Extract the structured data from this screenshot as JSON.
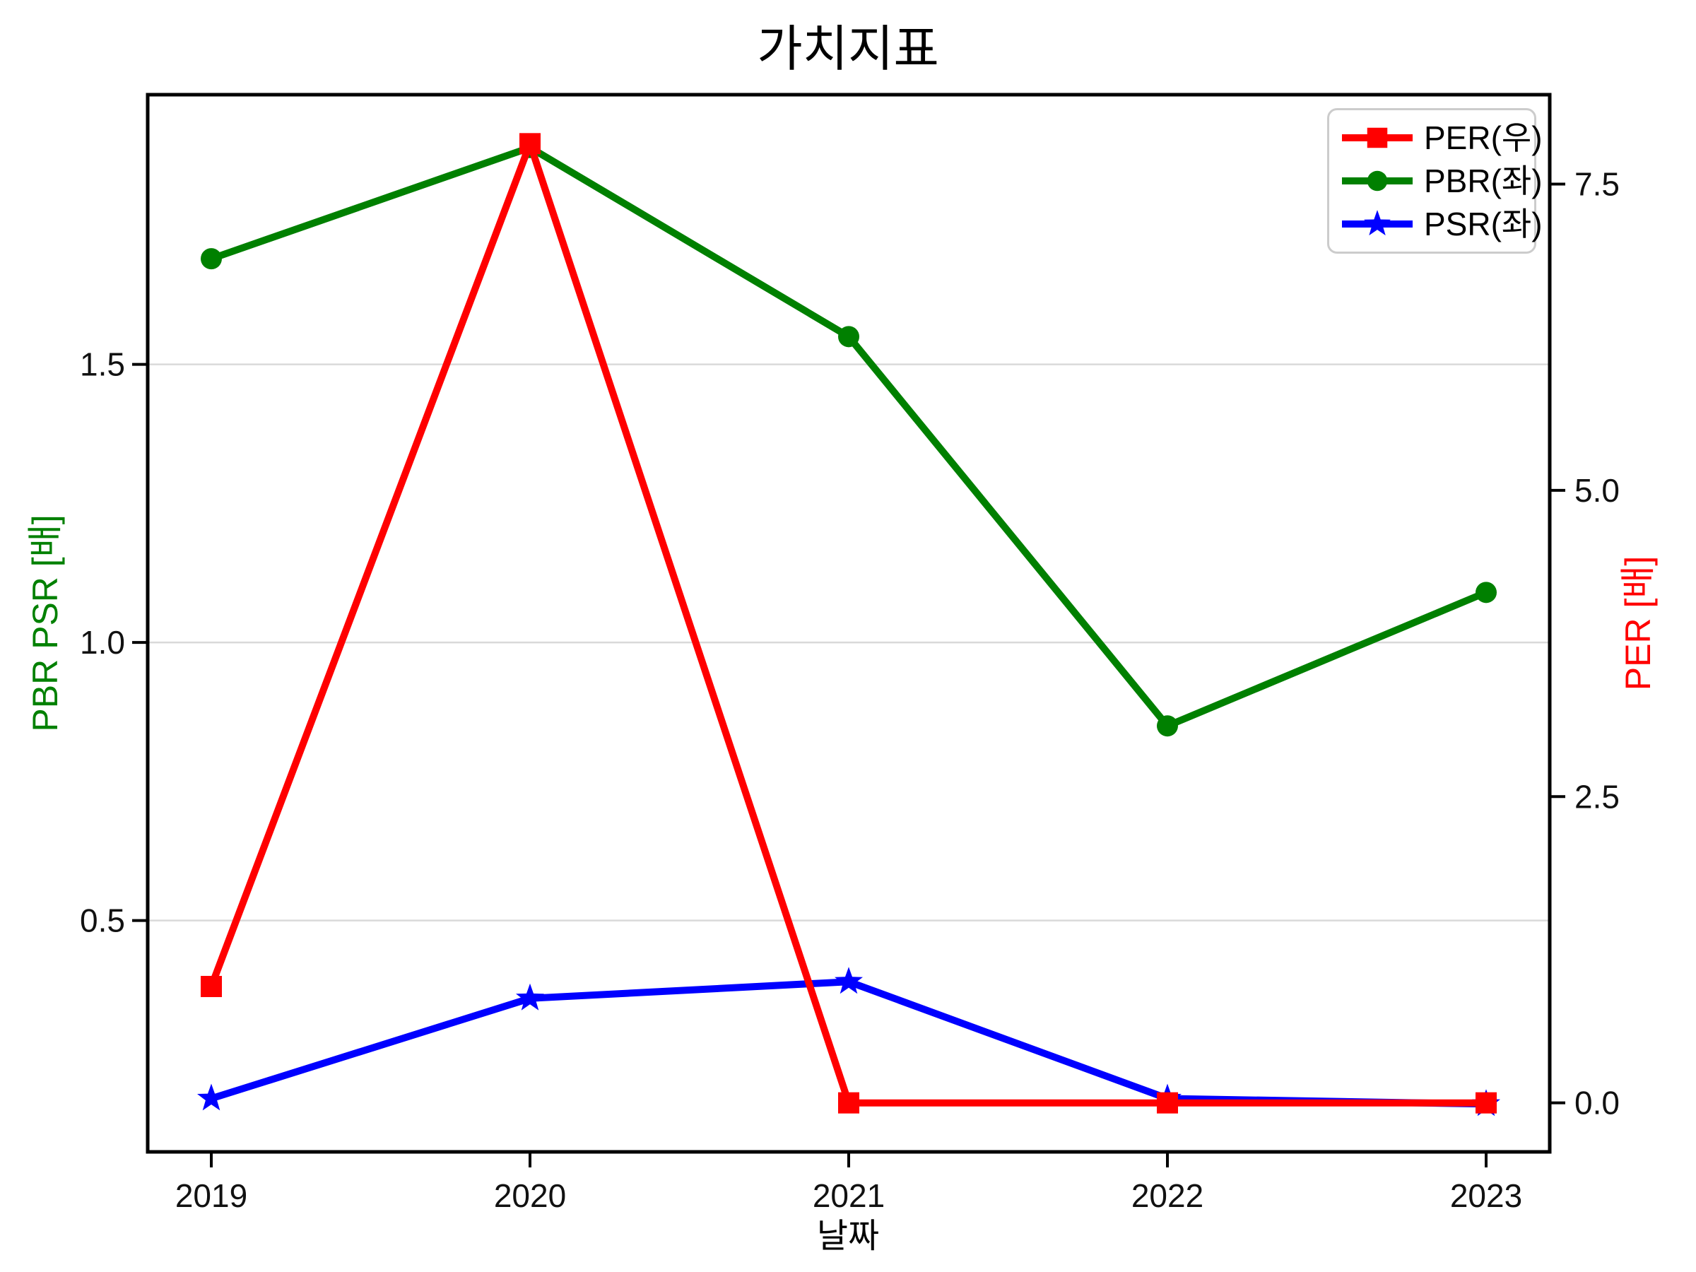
{
  "title": "가치지표",
  "axes": {
    "xlabel": "날짜",
    "ylabel_left": "PBR PSR [배]",
    "ylabel_right": "PER [배]"
  },
  "legend": [
    {
      "label": "PER(우)",
      "marker": "square",
      "color": "#ff0000"
    },
    {
      "label": "PBR(좌)",
      "marker": "circle",
      "color": "#008000"
    },
    {
      "label": "PSR(좌)",
      "marker": "star",
      "color": "#0000ff"
    }
  ],
  "colors": {
    "background": "#ffffff",
    "axis": "#000000",
    "grid": "#d9d9d9",
    "tick_text": "#111111",
    "title_text": "#000000",
    "left_label": "#008000",
    "right_label": "#ff0000",
    "legend_border": "#cccccc",
    "per": "#ff0000",
    "pbr": "#008000",
    "psr": "#0000ff"
  },
  "chart_data": {
    "type": "line",
    "title": "가치지표",
    "xlabel": "날짜",
    "ylabel_left": "PBR PSR [배]",
    "ylabel_right": "PER [배]",
    "x": [
      "2019",
      "2020",
      "2021",
      "2022",
      "2023"
    ],
    "series": [
      {
        "name": "PER(우)",
        "axis": "right",
        "color": "#ff0000",
        "marker": "square",
        "values": [
          0.95,
          7.83,
          0.0,
          0.0,
          0.0
        ]
      },
      {
        "name": "PBR(좌)",
        "axis": "left",
        "color": "#008000",
        "marker": "circle",
        "values": [
          1.69,
          1.89,
          1.55,
          0.85,
          1.09
        ]
      },
      {
        "name": "PSR(좌)",
        "axis": "left",
        "color": "#0000ff",
        "marker": "star",
        "values": [
          0.18,
          0.36,
          0.39,
          0.18,
          0.17
        ]
      }
    ],
    "draw_order": [
      1,
      2,
      0
    ],
    "ylim_left": [
      0.084,
      1.985
    ],
    "ylim_right": [
      -0.4,
      8.23
    ],
    "yticks_left": [
      0.5,
      1.0,
      1.5
    ],
    "yticks_right": [
      0.0,
      2.5,
      5.0,
      7.5
    ],
    "grid": "horizontal",
    "legend_position": "upper right"
  }
}
